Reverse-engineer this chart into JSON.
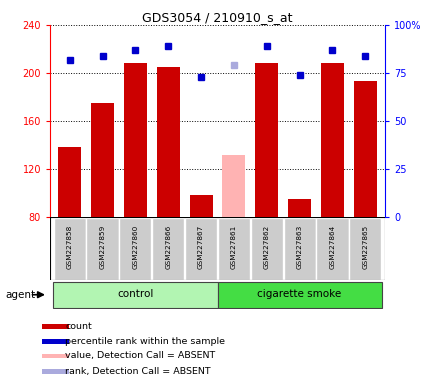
{
  "title": "GDS3054 / 210910_s_at",
  "samples": [
    "GSM227858",
    "GSM227859",
    "GSM227860",
    "GSM227866",
    "GSM227867",
    "GSM227861",
    "GSM227862",
    "GSM227863",
    "GSM227864",
    "GSM227865"
  ],
  "counts": [
    138,
    175,
    208,
    205,
    98,
    null,
    208,
    95,
    208,
    193
  ],
  "ranks_pct": [
    82,
    84,
    87,
    89,
    73,
    null,
    89,
    74,
    87,
    84
  ],
  "absent_count": [
    null,
    null,
    null,
    null,
    null,
    132,
    null,
    null,
    null,
    null
  ],
  "absent_rank_pct": [
    null,
    null,
    null,
    null,
    null,
    79,
    null,
    null,
    null,
    null
  ],
  "ylim_left": [
    80,
    240
  ],
  "ylim_right": [
    0,
    100
  ],
  "yticks_left": [
    80,
    120,
    160,
    200,
    240
  ],
  "yticks_right": [
    0,
    25,
    50,
    75,
    100
  ],
  "bar_color_present": "#cc0000",
  "bar_color_absent_count": "#ffb3b3",
  "rank_color_present": "#0000cc",
  "rank_color_absent": "#aaaadd",
  "control_bg": "#b2f5b2",
  "smoke_bg": "#44dd44",
  "xlabel_bg": "#cccccc",
  "agent_label": "agent",
  "control_label": "control",
  "smoke_label": "cigarette smoke",
  "legend_items": [
    {
      "color": "#cc0000",
      "label": "count"
    },
    {
      "color": "#0000cc",
      "label": "percentile rank within the sample"
    },
    {
      "color": "#ffb3b3",
      "label": "value, Detection Call = ABSENT"
    },
    {
      "color": "#aaaadd",
      "label": "rank, Detection Call = ABSENT"
    }
  ]
}
